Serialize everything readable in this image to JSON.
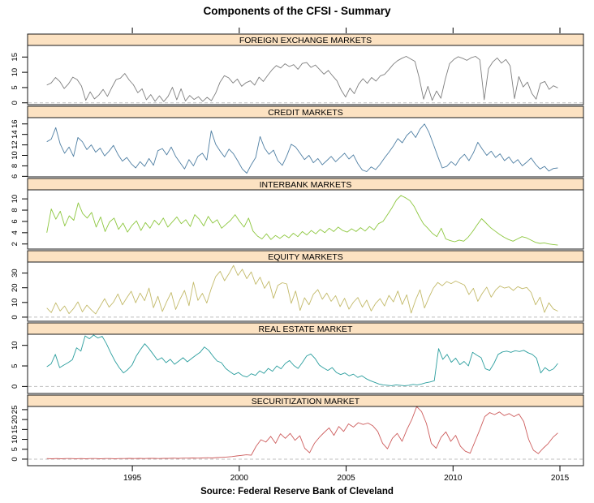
{
  "title": "Components of the CFSI - Summary",
  "source": "Source: Federal Reserve Bank of Cleveland",
  "colors": {
    "background": "#FFFFFF",
    "panel_background": "#FFFFFF",
    "strip_background": "#FCE2C2",
    "border": "#1A1A1A",
    "axis_text": "#000000",
    "zero_dash_line": "#BFBFBF"
  },
  "chart_data": {
    "type": "line",
    "title": "Components of the CFSI - Summary",
    "caption": "Source: Federal Reserve Bank of Cleveland",
    "layout": "6 stacked lattice panels, shared x axis",
    "grid": false,
    "legend": "none",
    "x_axis": {
      "xlim": [
        1990.1,
        2016.1
      ],
      "ticks": [
        1995,
        2000,
        2005,
        2010,
        2015
      ],
      "tick_labels": [
        "1995",
        "2000",
        "2005",
        "2010",
        "2015"
      ],
      "top_ticks": true,
      "bottom_ticks": true
    },
    "panels": [
      {
        "label": "FOREIGN EXCHANGE MARKETS",
        "color": "#7F7F7F",
        "yticks": [
          0,
          5,
          10,
          15
        ],
        "ylim": [
          -0.6,
          18.8
        ],
        "zero_line": true,
        "x_start": 1991.0,
        "x_end": 2014.9,
        "values": [
          5.8,
          6.5,
          8.3,
          7.0,
          4.7,
          6.2,
          8.4,
          7.6,
          5.5,
          0.8,
          3.6,
          1.3,
          2.5,
          4.4,
          2.1,
          5.0,
          7.6,
          8.1,
          9.6,
          7.5,
          5.9,
          3.3,
          4.6,
          1.0,
          2.7,
          0.5,
          2.3,
          0.4,
          2.1,
          5.1,
          1.0,
          4.6,
          0.6,
          2.4,
          1.1,
          2.0,
          0.5,
          1.8,
          0.7,
          3.2,
          6.8,
          8.9,
          8.2,
          6.5,
          7.8,
          5.4,
          6.6,
          7.2,
          5.8,
          8.4,
          7.0,
          9.0,
          10.8,
          12.2,
          11.4,
          12.8,
          11.9,
          12.5,
          11.0,
          12.9,
          13.2,
          11.6,
          12.4,
          10.9,
          9.4,
          10.6,
          8.8,
          7.2,
          4.1,
          1.9,
          4.8,
          3.0,
          6.1,
          7.9,
          6.4,
          8.3,
          7.1,
          8.8,
          9.3,
          10.9,
          12.6,
          13.8,
          14.6,
          15.2,
          14.4,
          13.6,
          8.2,
          1.2,
          5.4,
          0.8,
          3.9,
          1.5,
          7.6,
          12.8,
          14.2,
          15.1,
          14.6,
          13.9,
          14.8,
          15.2,
          14.1,
          1.0,
          11.2,
          13.4,
          14.7,
          13.0,
          14.2,
          12.1,
          1.4,
          8.6,
          5.2,
          6.8,
          3.1,
          1.2,
          6.4,
          7.0,
          4.4,
          5.6,
          4.9
        ]
      },
      {
        "label": "CREDIT MARKETS",
        "color": "#4F7FA3",
        "yticks": [
          6,
          8,
          10,
          12,
          14,
          16
        ],
        "ylim": [
          5.9,
          17.2
        ],
        "zero_line": false,
        "x_start": 1991.0,
        "x_end": 2014.9,
        "values": [
          12.6,
          13.1,
          15.3,
          12.2,
          10.4,
          11.6,
          9.8,
          13.4,
          12.6,
          11.1,
          12.0,
          10.6,
          11.4,
          9.9,
          10.8,
          11.9,
          10.2,
          8.9,
          9.6,
          8.4,
          7.6,
          8.8,
          7.9,
          9.4,
          8.1,
          10.9,
          11.3,
          10.1,
          11.6,
          9.8,
          8.6,
          7.4,
          9.2,
          8.0,
          9.8,
          10.4,
          9.1,
          14.7,
          12.1,
          10.8,
          9.7,
          11.2,
          10.3,
          8.9,
          7.4,
          6.6,
          8.2,
          9.6,
          13.6,
          11.4,
          10.2,
          11.0,
          9.0,
          8.1,
          9.9,
          12.1,
          11.6,
          10.4,
          9.2,
          10.0,
          8.6,
          9.4,
          8.2,
          9.0,
          9.8,
          8.8,
          9.6,
          10.4,
          9.3,
          10.1,
          8.4,
          7.2,
          6.9,
          7.8,
          7.3,
          8.3,
          9.5,
          10.6,
          11.8,
          13.2,
          12.4,
          13.8,
          14.6,
          13.4,
          15.0,
          16.0,
          14.4,
          12.1,
          9.8,
          7.6,
          7.9,
          8.8,
          8.1,
          9.4,
          10.2,
          9.0,
          10.5,
          12.5,
          11.2,
          10.0,
          10.8,
          9.6,
          10.3,
          9.0,
          9.7,
          8.5,
          9.2,
          8.0,
          8.7,
          9.5,
          8.3,
          7.4,
          7.9,
          7.0,
          7.5,
          7.6
        ]
      },
      {
        "label": "INTERBANK MARKETS",
        "color": "#8DC73F",
        "yticks": [
          2,
          4,
          6,
          8,
          10
        ],
        "ylim": [
          1.1,
          11.6
        ],
        "zero_line": false,
        "x_start": 1991.0,
        "x_end": 2014.9,
        "values": [
          4.0,
          8.2,
          6.4,
          7.8,
          5.2,
          7.0,
          6.2,
          9.3,
          7.4,
          6.6,
          7.6,
          5.0,
          6.8,
          4.2,
          5.9,
          6.6,
          4.6,
          5.7,
          4.1,
          5.3,
          6.1,
          4.4,
          5.8,
          4.8,
          6.2,
          5.4,
          6.6,
          5.0,
          5.9,
          6.8,
          5.6,
          6.3,
          5.1,
          7.2,
          6.4,
          5.2,
          6.9,
          5.7,
          6.3,
          4.8,
          5.5,
          6.2,
          7.2,
          6.0,
          5.0,
          6.6,
          4.3,
          3.4,
          2.9,
          3.8,
          2.8,
          3.5,
          3.0,
          3.6,
          3.1,
          3.9,
          3.3,
          4.2,
          3.6,
          4.4,
          3.8,
          4.6,
          4.0,
          4.8,
          4.2,
          5.0,
          4.4,
          4.1,
          4.7,
          4.2,
          4.9,
          4.3,
          5.1,
          4.5,
          5.6,
          6.0,
          7.2,
          8.4,
          9.8,
          10.6,
          10.2,
          9.7,
          8.6,
          7.0,
          5.6,
          4.8,
          3.9,
          3.3,
          4.8,
          2.9,
          2.6,
          2.4,
          2.7,
          2.5,
          3.2,
          4.2,
          5.4,
          6.5,
          5.7,
          4.9,
          4.3,
          3.7,
          3.2,
          2.8,
          2.5,
          2.9,
          3.3,
          3.1,
          2.7,
          2.3,
          2.1,
          2.2,
          2.0,
          1.9,
          1.8
        ]
      },
      {
        "label": "EQUITY MARKETS",
        "color": "#C3BA6A",
        "yticks": [
          0,
          10,
          20,
          30
        ],
        "ylim": [
          -2.8,
          37.5
        ],
        "zero_line": true,
        "x_start": 1991.0,
        "x_end": 2014.9,
        "values": [
          6.2,
          3.1,
          9.8,
          4.2,
          7.6,
          2.4,
          5.8,
          10.4,
          3.6,
          8.2,
          5.0,
          2.2,
          7.4,
          12.6,
          6.8,
          10.2,
          15.8,
          8.4,
          13.2,
          17.6,
          9.8,
          16.4,
          11.2,
          19.8,
          6.4,
          14.2,
          3.8,
          10.6,
          16.8,
          5.2,
          12.4,
          18.2,
          7.8,
          23.8,
          11.4,
          16.2,
          9.6,
          19.4,
          27.6,
          31.2,
          24.8,
          29.6,
          35.2,
          28.4,
          32.6,
          26.2,
          30.8,
          22.4,
          27.2,
          19.6,
          24.4,
          12.8,
          21.6,
          23.4,
          22.6,
          9.4,
          17.8,
          4.6,
          13.2,
          8.4,
          15.6,
          18.8,
          12.2,
          16.4,
          10.8,
          14.6,
          7.2,
          12.8,
          5.4,
          10.2,
          13.4,
          6.8,
          11.6,
          4.2,
          9.4,
          12.6,
          7.6,
          14.8,
          10.4,
          17.8,
          8.6,
          15.2,
          2.8,
          11.8,
          18.6,
          6.2,
          13.4,
          19.8,
          23.6,
          21.4,
          24.2,
          22.8,
          24.6,
          23.2,
          21.8,
          15.4,
          19.6,
          10.8,
          16.2,
          20.4,
          13.6,
          18.4,
          21.2,
          19.8,
          20.6,
          18.2,
          20.8,
          19.4,
          20.2,
          16.8,
          8.4,
          13.6,
          3.2,
          9.8,
          5.6,
          4.1
        ]
      },
      {
        "label": "REAL ESTATE MARKET",
        "color": "#2B9E9E",
        "yticks": [
          0,
          5,
          10
        ],
        "ylim": [
          -1.7,
          12.7
        ],
        "zero_line": true,
        "x_start": 1991.0,
        "x_end": 2014.9,
        "values": [
          4.8,
          5.5,
          7.8,
          4.6,
          5.2,
          5.8,
          6.5,
          9.4,
          8.6,
          12.3,
          11.6,
          12.5,
          11.8,
          12.2,
          10.4,
          8.2,
          6.2,
          4.6,
          3.3,
          4.1,
          5.2,
          7.4,
          9.0,
          10.4,
          9.2,
          7.8,
          6.4,
          7.0,
          5.8,
          6.6,
          5.4,
          6.2,
          7.0,
          6.0,
          6.8,
          7.6,
          8.3,
          9.6,
          8.8,
          7.4,
          6.2,
          5.8,
          4.4,
          3.6,
          2.9,
          3.4,
          2.6,
          2.3,
          3.1,
          2.7,
          3.8,
          3.2,
          4.4,
          3.7,
          5.0,
          4.3,
          5.6,
          6.3,
          5.1,
          4.4,
          5.8,
          7.4,
          7.9,
          6.8,
          5.2,
          4.5,
          3.9,
          4.6,
          3.4,
          2.9,
          3.3,
          2.6,
          3.0,
          2.2,
          2.6,
          1.9,
          1.4,
          1.0,
          0.6,
          0.4,
          0.3,
          0.2,
          0.4,
          0.3,
          0.2,
          0.3,
          0.5,
          0.4,
          0.6,
          0.9,
          1.1,
          1.4,
          9.2,
          6.6,
          7.8,
          5.9,
          6.9,
          5.3,
          6.1,
          5.0,
          8.3,
          7.6,
          7.0,
          4.3,
          3.9,
          5.6,
          7.8,
          8.4,
          8.6,
          8.3,
          8.7,
          8.5,
          8.8,
          8.2,
          7.8,
          6.9,
          3.3,
          4.6,
          3.8,
          4.3,
          5.6
        ]
      },
      {
        "label": "SECURITIZATION MARKET",
        "color": "#CD5C5C",
        "yticks": [
          0,
          5,
          10,
          15,
          20,
          25
        ],
        "ylim": [
          -3.3,
          26.6
        ],
        "zero_line": true,
        "x_start": 1991.0,
        "x_end": 2014.9,
        "values": [
          0.3,
          0.2,
          0.3,
          0.2,
          0.3,
          0.3,
          0.2,
          0.3,
          0.2,
          0.3,
          0.3,
          0.2,
          0.3,
          0.3,
          0.2,
          0.3,
          0.3,
          0.4,
          0.3,
          0.4,
          0.3,
          0.4,
          0.4,
          0.3,
          0.4,
          0.4,
          0.5,
          0.4,
          0.5,
          0.5,
          0.6,
          0.5,
          0.6,
          0.7,
          0.6,
          0.8,
          0.9,
          1.1,
          1.3,
          1.6,
          1.9,
          2.2,
          2.0,
          6.5,
          9.8,
          8.6,
          11.5,
          8.0,
          12.8,
          10.5,
          13.0,
          9.5,
          11.8,
          5.5,
          3.2,
          8.0,
          11.0,
          13.5,
          15.8,
          12.0,
          16.5,
          14.0,
          17.8,
          16.2,
          18.4,
          17.5,
          18.2,
          16.8,
          14.0,
          8.0,
          5.2,
          10.5,
          13.0,
          9.0,
          15.0,
          20.0,
          26.5,
          24.0,
          18.0,
          8.0,
          5.5,
          11.0,
          13.8,
          9.0,
          12.0,
          6.5,
          4.0,
          3.0,
          9.0,
          15.0,
          21.5,
          23.5,
          22.5,
          23.8,
          22.0,
          23.0,
          21.5,
          22.8,
          19.0,
          10.0,
          4.5,
          2.8,
          5.5,
          7.8,
          11.0,
          13.2
        ]
      }
    ]
  }
}
